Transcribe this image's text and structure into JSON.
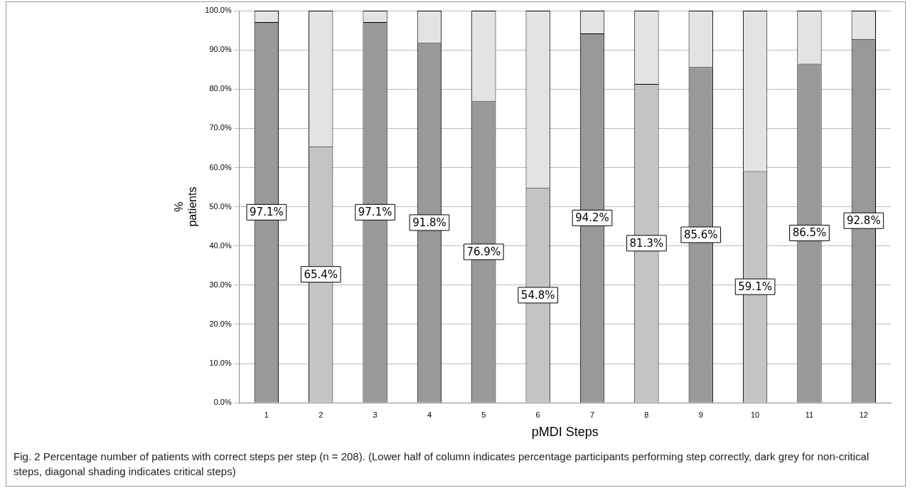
{
  "chart_data": {
    "type": "bar",
    "stacked": true,
    "xlabel": "pMDI Steps",
    "ylabel": "% patients",
    "categories": [
      "1",
      "2",
      "3",
      "4",
      "5",
      "6",
      "7",
      "8",
      "9",
      "10",
      "11",
      "12"
    ],
    "series": [
      {
        "colors": [
          "#999999",
          "#c4c4c4",
          "#999999",
          "#999999",
          "#999999",
          "#c4c4c4",
          "#999999",
          "#c4c4c4",
          "#999999",
          "#c4c4c4",
          "#999999",
          "#999999"
        ],
        "values": [
          97.1,
          65.4,
          97.1,
          91.8,
          76.9,
          54.8,
          94.2,
          81.3,
          85.6,
          59.1,
          86.5,
          92.8
        ],
        "value_labels": [
          "97.1%",
          "65.4%",
          "97.1%",
          "91.8%",
          "76.9%",
          "54.8%",
          "94.2%",
          "81.3%",
          "85.6%",
          "59.1%",
          "86.5%",
          "92.8%"
        ]
      },
      {
        "color": "#e3e3e3",
        "values": [
          2.9,
          34.6,
          2.9,
          8.2,
          23.1,
          45.2,
          5.8,
          18.7,
          14.4,
          40.9,
          13.5,
          7.2
        ]
      }
    ],
    "ylim": [
      0,
      100
    ],
    "yticks": [
      {
        "value": 0,
        "label": "0.0%"
      },
      {
        "value": 10,
        "label": "10.0%"
      },
      {
        "value": 20,
        "label": "20.0%"
      },
      {
        "value": 30,
        "label": "30.0%"
      },
      {
        "value": 40,
        "label": "40.0%"
      },
      {
        "value": 50,
        "label": "50.0%"
      },
      {
        "value": 60,
        "label": "60.0%"
      },
      {
        "value": 70,
        "label": "70.0%"
      },
      {
        "value": 80,
        "label": "80.0%"
      },
      {
        "value": 90,
        "label": "90.0%"
      },
      {
        "value": 100,
        "label": "100.0%"
      }
    ],
    "grid": "y",
    "legend": false,
    "annotations": [
      "Fig. 2 Percentage number of patients with correct steps per step (n = 208). (Lower half of column indicates percentage participants performing step correctly, dark grey for non-critical steps, diagonal shading indicates critical steps)"
    ]
  }
}
